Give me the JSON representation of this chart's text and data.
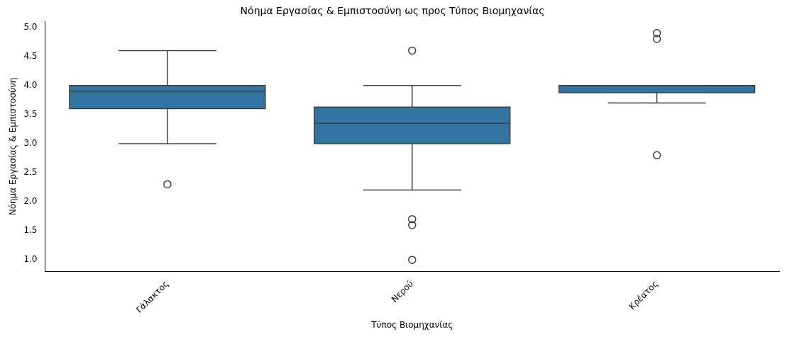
{
  "chart_data": {
    "type": "box",
    "title": "Νόημα Εργασίας & Εμπιστοσύνη ως προς Τύπος Βιομηχανίας",
    "xlabel": "Τύπος Βιομηχανίας",
    "ylabel": "Νόημα Εργασίας & Εμπιστοσύνη",
    "categories": [
      "Γάλακτος",
      "Νερού",
      "Κρέατος"
    ],
    "color": "#3274a1",
    "boxes": [
      {
        "low": 3.0,
        "q1": 3.6,
        "median": 3.9,
        "q3": 4.0,
        "high": 4.6,
        "outliers": [
          2.3
        ]
      },
      {
        "low": 2.2,
        "q1": 3.0,
        "median": 3.35,
        "q3": 3.63,
        "high": 4.0,
        "outliers": [
          4.6,
          1.7,
          1.6,
          1.0
        ]
      },
      {
        "low": 3.7,
        "q1": 3.875,
        "median": 4.0,
        "q3": 4.0,
        "high": 4.0,
        "outliers": [
          4.9,
          4.8,
          2.8
        ]
      }
    ],
    "ylim": [
      0.805,
      5.095
    ],
    "yticks": [
      {
        "value": 1.0,
        "label": "1.0"
      },
      {
        "value": 1.5,
        "label": "1.5"
      },
      {
        "value": 2.0,
        "label": "2.0"
      },
      {
        "value": 2.5,
        "label": "2.5"
      },
      {
        "value": 3.0,
        "label": "3.0"
      },
      {
        "value": 3.5,
        "label": "3.5"
      },
      {
        "value": 4.0,
        "label": "4.0"
      },
      {
        "value": 4.5,
        "label": "4.5"
      },
      {
        "value": 5.0,
        "label": "5.0"
      }
    ],
    "grid": false,
    "legend": false
  }
}
